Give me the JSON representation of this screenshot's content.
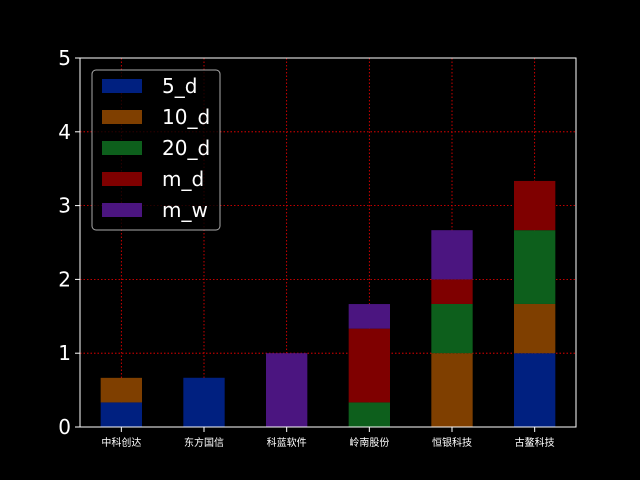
{
  "chart_data": {
    "type": "bar",
    "stacked": true,
    "categories": [
      "中科创达",
      "东方国信",
      "科蓝软件",
      "岭南股份",
      "恒银科技",
      "古鳌科技"
    ],
    "series": [
      {
        "name": "5_d",
        "color": "#002080",
        "values": [
          0.333,
          0.667,
          0,
          0,
          0,
          1.0
        ]
      },
      {
        "name": "10_d",
        "color": "#7f3f00",
        "values": [
          0.333,
          0,
          0,
          0,
          1.0,
          0.667
        ]
      },
      {
        "name": "20_d",
        "color": "#0d5f1c",
        "values": [
          0,
          0,
          0,
          0.333,
          0.667,
          1.0
        ]
      },
      {
        "name": "m_d",
        "color": "#7f0000",
        "values": [
          0,
          0,
          0,
          1.0,
          0.333,
          0.667
        ]
      },
      {
        "name": "m_w",
        "color": "#4b1580",
        "values": [
          0,
          0,
          1.0,
          0.333,
          0.667,
          0
        ]
      }
    ],
    "ylim": [
      0,
      5
    ],
    "yticks": [
      "0",
      "1",
      "2",
      "3",
      "4",
      "5"
    ],
    "grid": true,
    "grid_color": "#ff0000",
    "background": "#000000",
    "legend_position": "top-left"
  }
}
